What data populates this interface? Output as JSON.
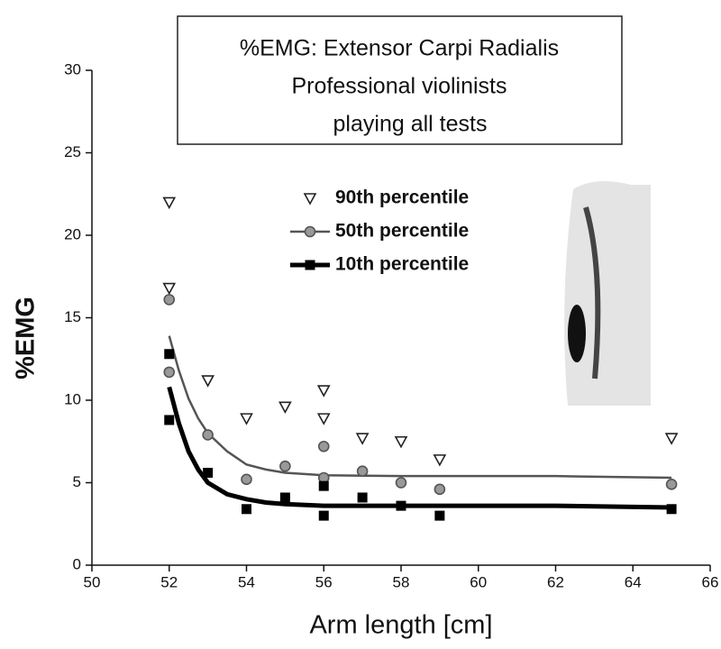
{
  "chart_data": {
    "type": "scatter",
    "title": [
      "%EMG: Extensor Carpi Radialis",
      "Professional violinists",
      "playing all tests"
    ],
    "x_label": "Arm length [cm]",
    "y_label": "%EMG",
    "xlim": [
      50,
      66
    ],
    "xticks": [
      50,
      52,
      54,
      56,
      58,
      60,
      62,
      64,
      66
    ],
    "ylim": [
      0,
      30
    ],
    "yticks": [
      0,
      5,
      10,
      15,
      20,
      25,
      30
    ],
    "series": [
      {
        "name": "90th percentile",
        "marker": "triangle",
        "color": "#222222",
        "x": [
          52,
          52,
          53,
          54,
          55,
          56,
          56,
          57,
          58,
          59,
          65
        ],
        "values": [
          22,
          16.8,
          11.2,
          8.9,
          9.6,
          10.6,
          8.9,
          7.7,
          7.5,
          6.4,
          7.7
        ]
      },
      {
        "name": "50th percentile",
        "marker": "circle",
        "color": "#555555",
        "x": [
          52,
          52,
          53,
          54,
          55,
          56,
          56,
          57,
          58,
          59,
          65
        ],
        "values": [
          16.1,
          11.7,
          7.9,
          5.2,
          6.0,
          7.2,
          5.3,
          5.7,
          5.0,
          4.6,
          4.9
        ],
        "fit_x": [
          52,
          52.25,
          52.5,
          52.75,
          53,
          53.5,
          54,
          54.5,
          55,
          56,
          58,
          60,
          62,
          65
        ],
        "fit_values": [
          13.9,
          11.8,
          10.1,
          8.9,
          8.0,
          6.9,
          6.1,
          5.8,
          5.6,
          5.45,
          5.4,
          5.4,
          5.4,
          5.3
        ]
      },
      {
        "name": "10th percentile",
        "marker": "square",
        "color": "#000000",
        "x": [
          52,
          52,
          53,
          54,
          55,
          56,
          56,
          57,
          58,
          59,
          65
        ],
        "values": [
          12.8,
          8.8,
          5.6,
          3.4,
          4.1,
          4.8,
          3.0,
          4.1,
          3.6,
          3.0,
          3.4
        ],
        "fit_x": [
          52,
          52.25,
          52.5,
          52.75,
          53,
          53.5,
          54,
          54.5,
          55,
          56,
          58,
          60,
          62,
          65
        ],
        "fit_values": [
          10.8,
          8.6,
          6.9,
          5.8,
          5.0,
          4.3,
          4.0,
          3.8,
          3.7,
          3.6,
          3.6,
          3.6,
          3.6,
          3.5
        ]
      }
    ]
  }
}
